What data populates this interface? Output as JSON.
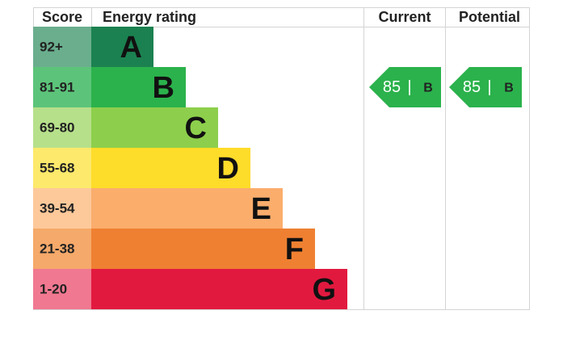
{
  "header": {
    "score": "Score",
    "rating": "Energy rating",
    "current": "Current",
    "potential": "Potential"
  },
  "bands": [
    {
      "score": "92+",
      "letter": "A",
      "cell_color": "#6aae8d",
      "bar_color": "#1b8150"
    },
    {
      "score": "81-91",
      "letter": "B",
      "cell_color": "#5cc47a",
      "bar_color": "#2bb24c"
    },
    {
      "score": "69-80",
      "letter": "C",
      "cell_color": "#b6e08a",
      "bar_color": "#8dcf4c"
    },
    {
      "score": "55-68",
      "letter": "D",
      "cell_color": "#fde96b",
      "bar_color": "#fedc2a"
    },
    {
      "score": "39-54",
      "letter": "E",
      "cell_color": "#fdc99a",
      "bar_color": "#fbad6c"
    },
    {
      "score": "21-38",
      "letter": "F",
      "cell_color": "#f5a96a",
      "bar_color": "#ef8032"
    },
    {
      "score": "1-20",
      "letter": "G",
      "cell_color": "#f07890",
      "bar_color": "#e2193f"
    }
  ],
  "current": {
    "score": "85",
    "separator": "|",
    "rating": "B"
  },
  "potential": {
    "score": "85",
    "separator": "|",
    "rating": "B"
  }
}
